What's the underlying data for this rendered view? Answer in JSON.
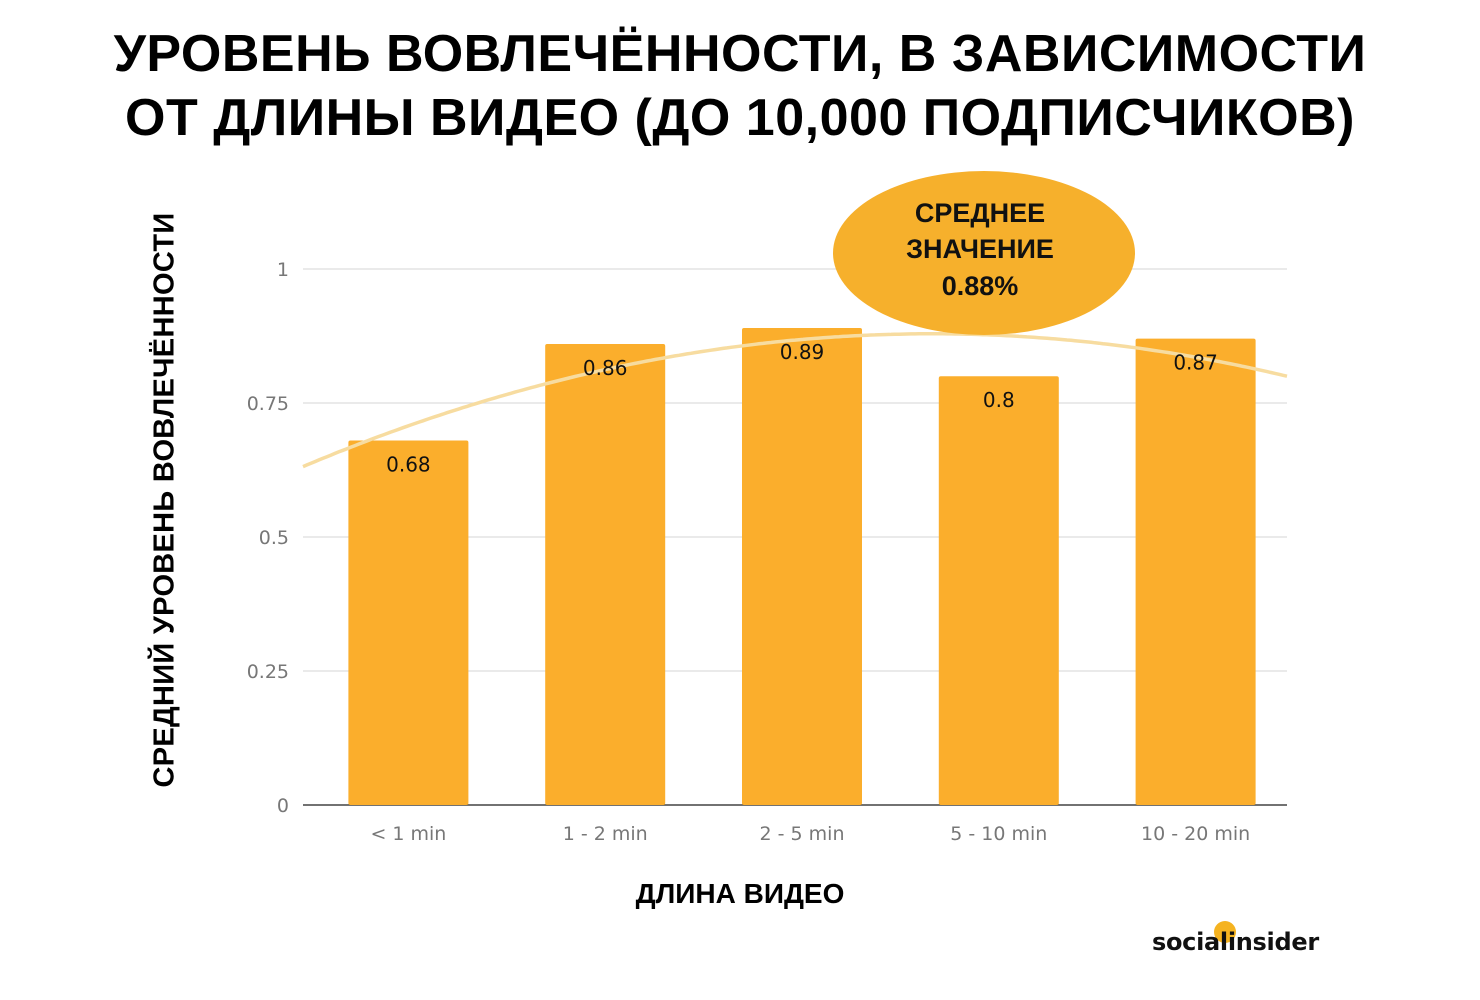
{
  "title_line1": "УРОВЕНЬ ВОВЛЕЧЁННОСТИ, В ЗАВИСИМОСТИ",
  "title_line2": "ОТ ДЛИНЫ ВИДЕО (ДО 10,000 ПОДПИСЧИКОВ)",
  "logo": "socialinsider",
  "colors": {
    "bar": "#fbae2c",
    "trend": "#f7dca0",
    "grid": "#dddddd",
    "axis": "#444444",
    "annotation_bg": "#f6b02c"
  },
  "chart_data": {
    "type": "bar",
    "title": "УРОВЕНЬ ВОВЛЕЧЁННОСТИ, В ЗАВИСИМОСТИ ОТ ДЛИНЫ ВИДЕО (ДО 10,000 ПОДПИСЧИКОВ)",
    "xlabel": "ДЛИНА ВИДЕО",
    "ylabel": "СРЕДНИЙ УРОВЕНЬ ВОВЛЕЧЁННОСТИ",
    "categories": [
      "< 1 min",
      "1 - 2 min",
      "2 - 5 min",
      "5 - 10 min",
      "10 - 20 min"
    ],
    "values": [
      0.68,
      0.86,
      0.89,
      0.8,
      0.87
    ],
    "data_labels": [
      "0.68",
      "0.86",
      "0.89",
      "0.8",
      "0.87"
    ],
    "ylim": [
      0,
      1
    ],
    "yticks": [
      0,
      0.25,
      0.5,
      0.75,
      1
    ],
    "ytick_labels": [
      "0",
      "0.25",
      "0.5",
      "0.75",
      "1"
    ],
    "grid": true,
    "trendline": "polynomial",
    "annotation": {
      "lines": [
        "СРЕДНЕЕ",
        "ЗНАЧЕНИЕ",
        "0.88%"
      ]
    }
  }
}
